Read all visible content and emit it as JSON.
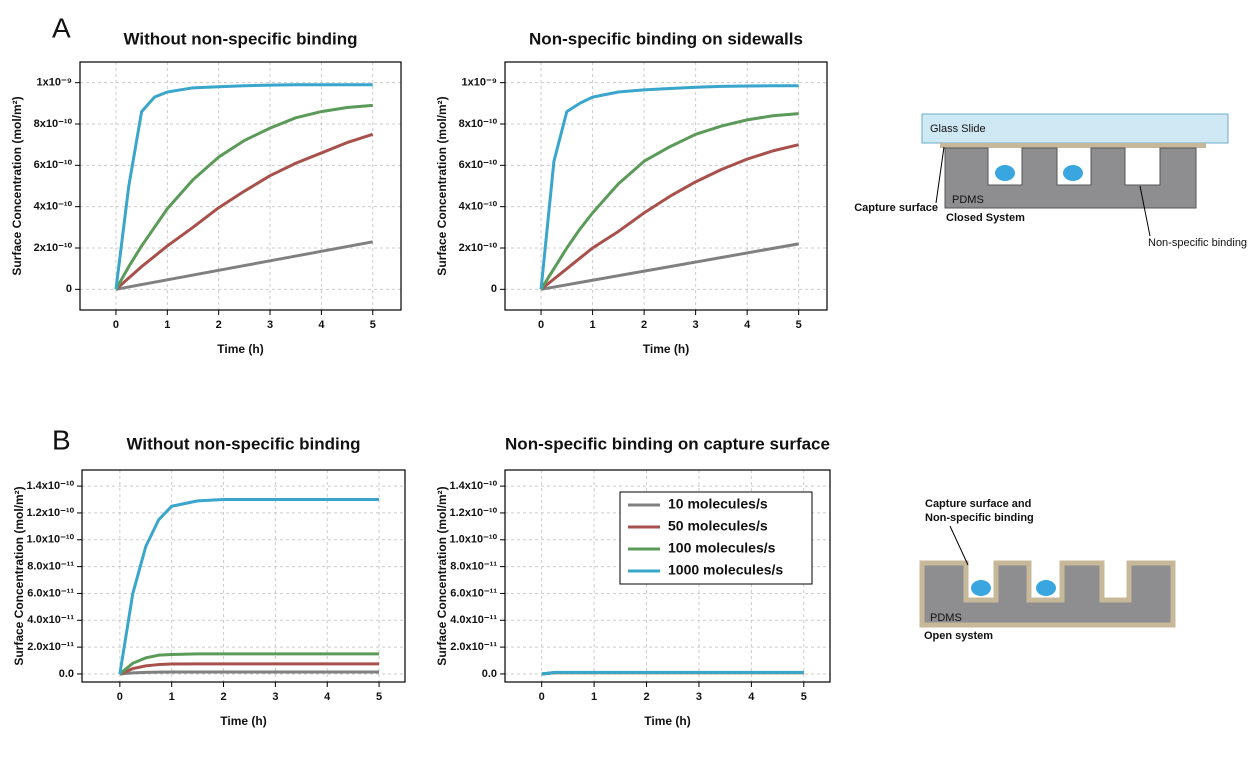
{
  "panels": [
    "A",
    "B"
  ],
  "chart_data": [
    {
      "type": "line",
      "title": "Without non-specific binding",
      "xlabel": "Time (h)",
      "ylabel": "Surface Concentration (mol/m²)",
      "x": [
        0,
        0.25,
        0.5,
        0.75,
        1,
        1.5,
        2,
        2.5,
        3,
        3.5,
        4,
        4.5,
        5
      ],
      "xlim": [
        -0.7,
        5.55
      ],
      "xticks": [
        0,
        1,
        2,
        3,
        4,
        5
      ],
      "ylim": [
        -1e-10,
        1.1e-09
      ],
      "yticks": [
        0,
        {
          "value": 2e-10,
          "label": "2x10⁻¹⁰"
        },
        {
          "value": 4e-10,
          "label": "4x10⁻¹⁰"
        },
        {
          "value": 6e-10,
          "label": "6x10⁻¹⁰"
        },
        {
          "value": 8e-10,
          "label": "8x10⁻¹⁰"
        },
        {
          "value": 1e-09,
          "label": "1x10⁻⁹"
        }
      ],
      "grid": true,
      "series": [
        {
          "color": "#808080",
          "values": [
            0,
            1.15e-11,
            2.3e-11,
            3.45e-11,
            4.6e-11,
            6.9e-11,
            9.2e-11,
            1.15e-10,
            1.38e-10,
            1.61e-10,
            1.84e-10,
            2.07e-10,
            2.3e-10
          ]
        },
        {
          "color": "#a8514c",
          "values": [
            0,
            5.5e-11,
            1.1e-10,
            1.6e-10,
            2.1e-10,
            3e-10,
            3.95e-10,
            4.75e-10,
            5.5e-10,
            6.1e-10,
            6.6e-10,
            7.1e-10,
            7.5e-10
          ]
        },
        {
          "color": "#5b9a58",
          "values": [
            0,
            1.1e-10,
            2.1e-10,
            3e-10,
            3.9e-10,
            5.3e-10,
            6.4e-10,
            7.2e-10,
            7.8e-10,
            8.3e-10,
            8.6e-10,
            8.8e-10,
            8.9e-10
          ]
        },
        {
          "color": "#3aa6cc",
          "values": [
            0,
            5e-10,
            8.6e-10,
            9.3e-10,
            9.55e-10,
            9.75e-10,
            9.8e-10,
            9.85e-10,
            9.88e-10,
            9.9e-10,
            9.9e-10,
            9.9e-10,
            9.9e-10
          ]
        }
      ]
    },
    {
      "type": "line",
      "title": "Non-specific binding on sidewalls",
      "xlabel": "Time (h)",
      "ylabel": "Surface Concentration (mol/m²)",
      "x": [
        0,
        0.25,
        0.5,
        0.75,
        1,
        1.5,
        2,
        2.5,
        3,
        3.5,
        4,
        4.5,
        5
      ],
      "xlim": [
        -0.7,
        5.55
      ],
      "xticks": [
        0,
        1,
        2,
        3,
        4,
        5
      ],
      "ylim": [
        -1e-10,
        1.1e-09
      ],
      "yticks": [
        0,
        {
          "value": 2e-10,
          "label": "2x10⁻¹⁰"
        },
        {
          "value": 4e-10,
          "label": "4x10⁻¹⁰"
        },
        {
          "value": 6e-10,
          "label": "6x10⁻¹⁰"
        },
        {
          "value": 8e-10,
          "label": "8x10⁻¹⁰"
        },
        {
          "value": 1e-09,
          "label": "1x10⁻⁹"
        }
      ],
      "grid": true,
      "series": [
        {
          "color": "#808080",
          "values": [
            0,
            1.1e-11,
            2.2e-11,
            3.3e-11,
            4.4e-11,
            6.6e-11,
            8.8e-11,
            1.1e-10,
            1.32e-10,
            1.54e-10,
            1.76e-10,
            1.98e-10,
            2.2e-10
          ]
        },
        {
          "color": "#a8514c",
          "values": [
            0,
            5e-11,
            1e-10,
            1.5e-10,
            2e-10,
            2.8e-10,
            3.7e-10,
            4.5e-10,
            5.2e-10,
            5.8e-10,
            6.3e-10,
            6.7e-10,
            7e-10
          ]
        },
        {
          "color": "#5b9a58",
          "values": [
            0,
            1e-10,
            2e-10,
            2.9e-10,
            3.7e-10,
            5.1e-10,
            6.2e-10,
            6.9e-10,
            7.5e-10,
            7.9e-10,
            8.2e-10,
            8.4e-10,
            8.5e-10
          ]
        },
        {
          "color": "#3aa6cc",
          "values": [
            0,
            6.2e-10,
            8.6e-10,
            9e-10,
            9.3e-10,
            9.55e-10,
            9.65e-10,
            9.72e-10,
            9.78e-10,
            9.82e-10,
            9.84e-10,
            9.85e-10,
            9.85e-10
          ]
        }
      ]
    },
    {
      "type": "line",
      "title": "Without non-specific binding",
      "xlabel": "Time (h)",
      "ylabel": "Surface Concentration (mol/m²)",
      "x": [
        0,
        0.25,
        0.5,
        0.75,
        1,
        1.5,
        2,
        2.5,
        3,
        3.5,
        4,
        4.5,
        5
      ],
      "xlim": [
        -0.73,
        5.5
      ],
      "xticks": [
        0,
        1,
        2,
        3,
        4,
        5
      ],
      "ylim": [
        -6e-12,
        1.52e-10
      ],
      "yticks": [
        {
          "value": 0,
          "label": "0.0"
        },
        {
          "value": 2e-11,
          "label": "2.0x10⁻¹¹"
        },
        {
          "value": 4e-11,
          "label": "4.0x10⁻¹¹"
        },
        {
          "value": 6e-11,
          "label": "6.0x10⁻¹¹"
        },
        {
          "value": 8e-11,
          "label": "8.0x10⁻¹¹"
        },
        {
          "value": 1e-10,
          "label": "1.0x10⁻¹⁰"
        },
        {
          "value": 1.2e-10,
          "label": "1.2x10⁻¹⁰"
        },
        {
          "value": 1.4e-10,
          "label": "1.4x10⁻¹⁰"
        }
      ],
      "grid": true,
      "series": [
        {
          "color": "#808080",
          "values": [
            0,
            8e-13,
            1.2e-12,
            1.4e-12,
            1.5e-12,
            1.5e-12,
            1.5e-12,
            1.5e-12,
            1.5e-12,
            1.5e-12,
            1.5e-12,
            1.5e-12,
            1.5e-12
          ]
        },
        {
          "color": "#a8514c",
          "values": [
            0,
            4e-12,
            6e-12,
            7e-12,
            7.4e-12,
            7.5e-12,
            7.5e-12,
            7.5e-12,
            7.5e-12,
            7.5e-12,
            7.5e-12,
            7.5e-12,
            7.5e-12
          ]
        },
        {
          "color": "#5b9a58",
          "values": [
            0,
            8e-12,
            1.2e-11,
            1.4e-11,
            1.45e-11,
            1.5e-11,
            1.5e-11,
            1.5e-11,
            1.5e-11,
            1.5e-11,
            1.5e-11,
            1.5e-11,
            1.5e-11
          ]
        },
        {
          "color": "#3aa6cc",
          "values": [
            0,
            6e-11,
            9.5e-11,
            1.15e-10,
            1.25e-10,
            1.29e-10,
            1.3e-10,
            1.3e-10,
            1.3e-10,
            1.3e-10,
            1.3e-10,
            1.3e-10,
            1.3e-10
          ]
        }
      ]
    },
    {
      "type": "line",
      "title": "Non-specific binding on capture surface",
      "xlabel": "Time (h)",
      "ylabel": "Surface Concentration (mol/m²)",
      "x": [
        0,
        0.25,
        0.5,
        0.75,
        1,
        1.5,
        2,
        2.5,
        3,
        3.5,
        4,
        4.5,
        5
      ],
      "xlim": [
        -0.7,
        5.5
      ],
      "xticks": [
        0,
        1,
        2,
        3,
        4,
        5
      ],
      "ylim": [
        -6e-12,
        1.52e-10
      ],
      "yticks": [
        {
          "value": 0,
          "label": "0.0"
        },
        {
          "value": 2e-11,
          "label": "2.0x10⁻¹¹"
        },
        {
          "value": 4e-11,
          "label": "4.0x10⁻¹¹"
        },
        {
          "value": 6e-11,
          "label": "6.0x10⁻¹¹"
        },
        {
          "value": 8e-11,
          "label": "8.0x10⁻¹¹"
        },
        {
          "value": 1e-10,
          "label": "1.0x10⁻¹⁰"
        },
        {
          "value": 1.2e-10,
          "label": "1.2x10⁻¹⁰"
        },
        {
          "value": 1.4e-10,
          "label": "1.4x10⁻¹⁰"
        }
      ],
      "grid": true,
      "legend": "upper right",
      "series": [
        {
          "name": "10 molecules/s",
          "color": "#808080",
          "values": [
            0,
            1e-12,
            1e-12,
            1e-12,
            1e-12,
            1e-12,
            1e-12,
            1e-12,
            1e-12,
            1e-12,
            1e-12,
            1e-12,
            1e-12
          ]
        },
        {
          "name": "50 molecules/s",
          "color": "#a8514c",
          "values": [
            0,
            1e-12,
            1e-12,
            1e-12,
            1e-12,
            1e-12,
            1e-12,
            1e-12,
            1e-12,
            1e-12,
            1e-12,
            1e-12,
            1e-12
          ]
        },
        {
          "name": "100 molecules/s",
          "color": "#5b9a58",
          "values": [
            0,
            1e-12,
            1e-12,
            1e-12,
            1e-12,
            1e-12,
            1e-12,
            1e-12,
            1e-12,
            1e-12,
            1e-12,
            1e-12,
            1e-12
          ]
        },
        {
          "name": "1000 molecules/s",
          "color": "#3aa6cc",
          "values": [
            0,
            1.2e-12,
            1.2e-12,
            1.2e-12,
            1.2e-12,
            1.2e-12,
            1.2e-12,
            1.2e-12,
            1.2e-12,
            1.2e-12,
            1.2e-12,
            1.2e-12,
            1.2e-12
          ]
        }
      ]
    }
  ],
  "diagrams": [
    {
      "glass": "Glass Slide",
      "pdms": "PDMS",
      "capture": "Capture surface",
      "caption": "Closed System",
      "nonspecific": "Non-specific binding"
    },
    {
      "capture_line1": "Capture surface and",
      "capture_line2": "Non-specific binding",
      "pdms": "PDMS",
      "caption": "Open system"
    }
  ]
}
